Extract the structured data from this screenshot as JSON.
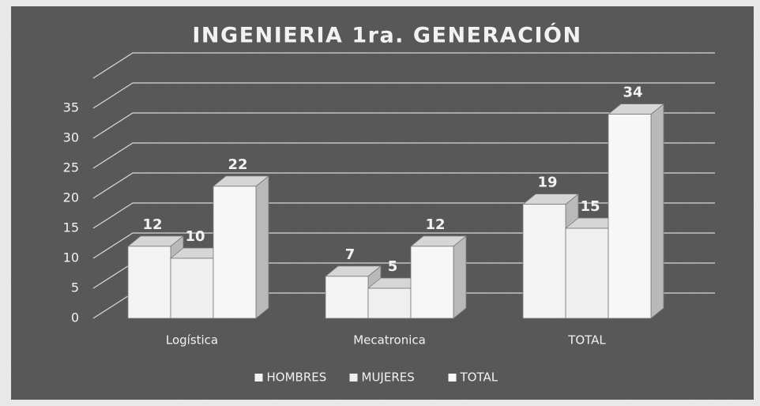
{
  "chart_data": {
    "type": "bar3d",
    "title": "INGENIERIA 1ra. GENERACIÓN",
    "categories": [
      "Logística",
      "Mecatronica",
      "TOTAL"
    ],
    "series": [
      {
        "name": "HOMBRES",
        "color": "#f3f3f3",
        "values": [
          12,
          7,
          19
        ]
      },
      {
        "name": "MUJERES",
        "color": "#efefef",
        "values": [
          10,
          5,
          15
        ]
      },
      {
        "name": "TOTAL",
        "color": "#f7f7f7",
        "values": [
          22,
          12,
          34
        ]
      }
    ],
    "ylim": [
      0,
      40
    ],
    "yticks": [
      0,
      5,
      10,
      15,
      20,
      25,
      30,
      35
    ],
    "grid": true,
    "legend": "bottom"
  }
}
